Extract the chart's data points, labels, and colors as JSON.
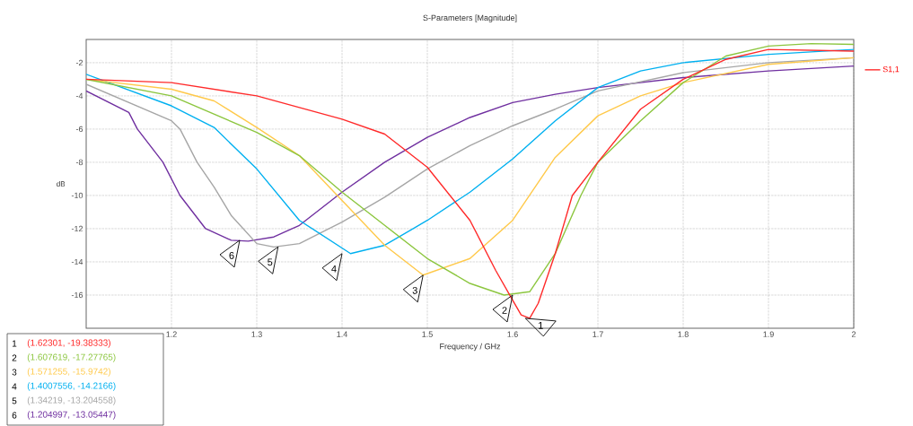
{
  "chart_data": {
    "type": "line",
    "title": "S-Parameters [Magnitude]",
    "xlabel": "Frequency / GHz",
    "ylabel": "dB",
    "xlim": [
      1.1,
      2.0
    ],
    "ylim": [
      -18,
      -0.6
    ],
    "xticks": [
      1.2,
      1.3,
      1.4,
      1.5,
      1.6,
      1.7,
      1.8,
      1.9,
      2
    ],
    "yticks": [
      -16,
      -14,
      -12,
      -10,
      -8,
      -6,
      -4,
      -2
    ],
    "grid": true,
    "legend": "right",
    "line_style": "solid",
    "marker": "none",
    "series": [
      {
        "name": "S1,1",
        "color": "#ff2a2a",
        "x": [
          1.1,
          1.2,
          1.3,
          1.4,
          1.45,
          1.5,
          1.55,
          1.58,
          1.6,
          1.61,
          1.62,
          1.63,
          1.65,
          1.67,
          1.7,
          1.75,
          1.8,
          1.85,
          1.9,
          1.95,
          2.0
        ],
        "values": [
          -3.0,
          -3.2,
          -4.0,
          -5.4,
          -6.3,
          -8.3,
          -11.5,
          -14.5,
          -16.3,
          -17.2,
          -17.4,
          -16.5,
          -13.5,
          -10.0,
          -8.0,
          -4.8,
          -3.0,
          -1.8,
          -1.2,
          -1.25,
          -1.3
        ]
      },
      {
        "color": "#8cc63f",
        "x": [
          1.1,
          1.2,
          1.3,
          1.35,
          1.4,
          1.45,
          1.5,
          1.55,
          1.59,
          1.62,
          1.65,
          1.68,
          1.7,
          1.75,
          1.8,
          1.85,
          1.9,
          1.95,
          2.0
        ],
        "values": [
          -3.0,
          -4.0,
          -6.2,
          -7.6,
          -9.8,
          -11.8,
          -13.8,
          -15.3,
          -16.0,
          -15.8,
          -13.5,
          -10.0,
          -8.0,
          -5.5,
          -3.2,
          -1.6,
          -1.0,
          -0.85,
          -0.9
        ]
      },
      {
        "color": "#ffc94a",
        "x": [
          1.1,
          1.2,
          1.25,
          1.3,
          1.35,
          1.4,
          1.45,
          1.495,
          1.55,
          1.6,
          1.65,
          1.7,
          1.75,
          1.8,
          1.9,
          2.0
        ],
        "values": [
          -3.0,
          -3.6,
          -4.3,
          -5.9,
          -7.6,
          -10.3,
          -13.0,
          -14.8,
          -13.8,
          -11.5,
          -7.7,
          -5.2,
          -4.0,
          -3.2,
          -2.1,
          -1.7
        ]
      },
      {
        "color": "#00b0f0",
        "x": [
          1.1,
          1.2,
          1.25,
          1.3,
          1.35,
          1.41,
          1.45,
          1.5,
          1.55,
          1.6,
          1.65,
          1.7,
          1.75,
          1.8,
          1.9,
          2.0
        ],
        "values": [
          -2.7,
          -4.6,
          -5.9,
          -8.4,
          -11.5,
          -13.5,
          -13.0,
          -11.5,
          -9.8,
          -7.8,
          -5.5,
          -3.5,
          -2.5,
          -2.0,
          -1.5,
          -1.2
        ]
      },
      {
        "color": "#a6a6a6",
        "x": [
          1.1,
          1.2,
          1.21,
          1.23,
          1.25,
          1.27,
          1.3,
          1.32,
          1.35,
          1.4,
          1.45,
          1.5,
          1.55,
          1.6,
          1.65,
          1.7,
          1.8,
          1.9,
          2.0
        ],
        "values": [
          -3.3,
          -5.5,
          -6.0,
          -8.0,
          -9.5,
          -11.2,
          -12.9,
          -13.1,
          -12.9,
          -11.6,
          -10.1,
          -8.4,
          -7.0,
          -5.8,
          -4.8,
          -3.7,
          -2.6,
          -2.0,
          -1.7
        ]
      },
      {
        "color": "#7030a0",
        "x": [
          1.1,
          1.15,
          1.16,
          1.19,
          1.21,
          1.24,
          1.27,
          1.29,
          1.32,
          1.35,
          1.4,
          1.45,
          1.5,
          1.55,
          1.6,
          1.65,
          1.7,
          1.8,
          1.9,
          2.0
        ],
        "values": [
          -3.7,
          -5.0,
          -6.0,
          -8.0,
          -10.0,
          -12.0,
          -12.7,
          -12.75,
          -12.5,
          -11.8,
          -9.8,
          -8.0,
          -6.5,
          -5.3,
          -4.4,
          -3.9,
          -3.5,
          -2.9,
          -2.5,
          -2.2
        ]
      }
    ],
    "annotations": [
      {
        "text": "1",
        "x": 1.615,
        "y": -17.4
      },
      {
        "text": "2",
        "x": 1.6,
        "y": -16.0
      },
      {
        "text": "3",
        "x": 1.495,
        "y": -14.8
      },
      {
        "text": "4",
        "x": 1.4,
        "y": -13.5
      },
      {
        "text": "5",
        "x": 1.325,
        "y": -13.1
      },
      {
        "text": "6",
        "x": 1.28,
        "y": -12.7
      },
      "1",
      "(1.62301, -19.38333)",
      "2",
      "(1.607619, -17.27765)",
      "3",
      "(1.571255, -15.9742)",
      "4",
      "(1.4007556, -14.2166)",
      "5",
      "(1.34219, -13.204558)",
      "6",
      "(1.204997, -13.05447)"
    ]
  }
}
